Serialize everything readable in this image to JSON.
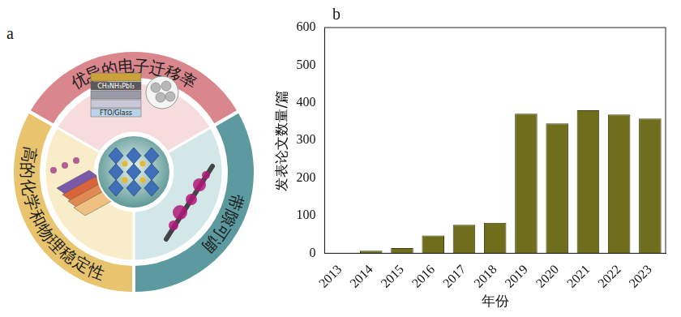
{
  "diagram": {
    "label": "a",
    "segments": [
      {
        "text": "优异的电子迁移率"
      },
      {
        "text": "带隙可调"
      },
      {
        "text": "高的化学和物理稳定性"
      }
    ],
    "inset_texts": [
      "CH₃NH₃PbI₃",
      "FTO/Glass"
    ]
  },
  "chart_data": {
    "label": "b",
    "type": "bar",
    "x_label": "年份",
    "y_label": "发表论文数量/篇",
    "categories": [
      "2013",
      "2014",
      "2015",
      "2016",
      "2017",
      "2018",
      "2019",
      "2020",
      "2021",
      "2022",
      "2023"
    ],
    "values": [
      0,
      7,
      14,
      47,
      76,
      81,
      371,
      345,
      380,
      369,
      358
    ],
    "color": "#6e6e1c",
    "ylim": [
      0,
      600
    ],
    "yticks": [
      0,
      100,
      200,
      300,
      400,
      500,
      600
    ],
    "grid": false
  }
}
